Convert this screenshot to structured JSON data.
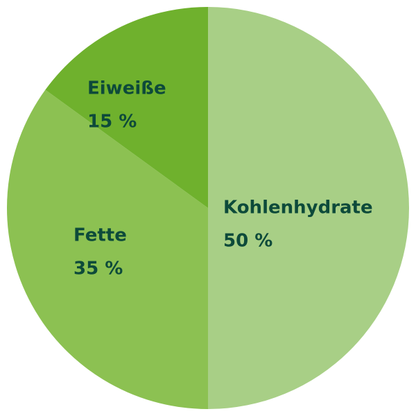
{
  "chart_data": {
    "type": "pie",
    "categories": [
      "Kohlenhydrate",
      "Fette",
      "Eiweiße"
    ],
    "values": [
      50,
      35,
      15
    ],
    "value_labels": [
      "50 %",
      "35 %",
      "15 %"
    ],
    "colors": [
      "#a8cf86",
      "#8cc152",
      "#6fb12d"
    ]
  }
}
